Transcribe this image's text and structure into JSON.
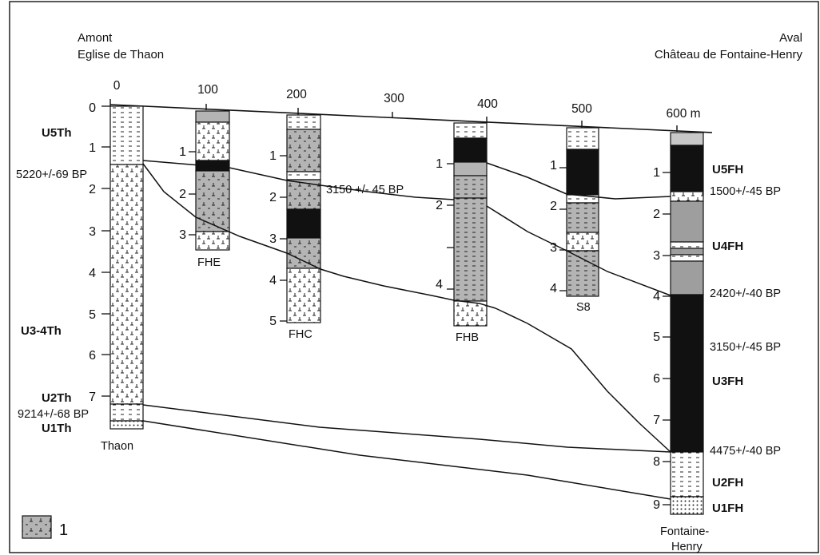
{
  "header": {
    "left_line1": "Amont",
    "left_line2": "Eglise de Thaon",
    "right_line1": "Aval",
    "right_line2": "Château de Fontaine-Henry"
  },
  "distance_axis": {
    "ticks": [
      "0",
      "100",
      "200",
      "300",
      "400",
      "500",
      "600 m"
    ]
  },
  "columns": {
    "thaon": {
      "name": "Thaon",
      "depths": [
        "0",
        "1",
        "2",
        "3",
        "4",
        "5",
        "6",
        "7"
      ],
      "units": [
        "U5Th",
        "U3-4Th",
        "U2Th",
        "U1Th"
      ],
      "dates": [
        "5220+/-69 BP",
        "9214+/-68 BP"
      ]
    },
    "fhe": {
      "name": "FHE",
      "depths": [
        "1",
        "2",
        "3"
      ]
    },
    "fhc": {
      "name": "FHC",
      "depths": [
        "1",
        "2",
        "3",
        "4",
        "5"
      ],
      "dates": [
        "3150 +/- 45 BP"
      ]
    },
    "fhb": {
      "name": "FHB",
      "depths": [
        "1",
        "2",
        "4"
      ]
    },
    "s8": {
      "name": "S8",
      "depths": [
        "1",
        "2",
        "3",
        "4"
      ]
    },
    "fontaine": {
      "name_line1": "Fontaine-",
      "name_line2": "Henry",
      "depths": [
        "1",
        "2",
        "3",
        "4",
        "5",
        "6",
        "7",
        "8",
        "9"
      ],
      "units": [
        "U5FH",
        "U4FH",
        "U3FH",
        "U2FH",
        "U1FH"
      ],
      "dates": [
        "1500+/-45 BP",
        "2420+/-40 BP",
        "3150+/-45 BP",
        "4475+/-40 BP"
      ]
    }
  },
  "legend": {
    "label": "1"
  }
}
